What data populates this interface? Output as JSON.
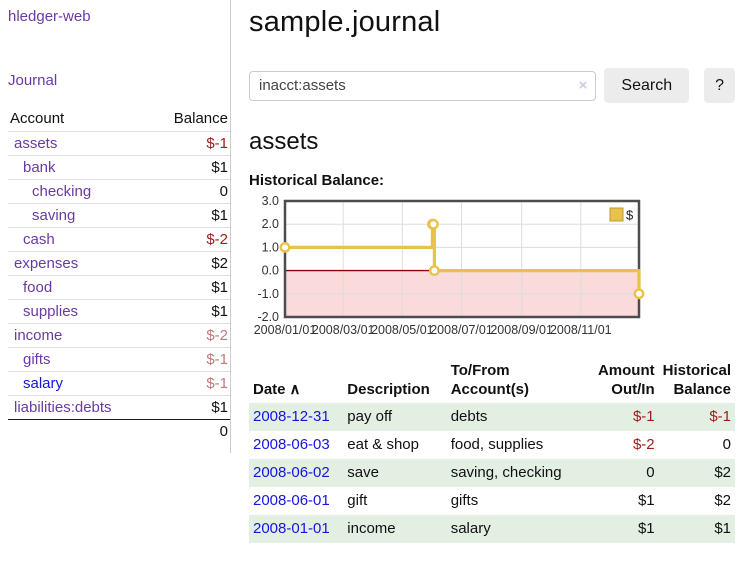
{
  "app": {
    "brand": "hledger-web",
    "nav_journal": "Journal"
  },
  "sidebar": {
    "columns": {
      "account": "Account",
      "balance": "Balance"
    },
    "accounts": [
      {
        "name": "assets",
        "depth": 1,
        "bold": true,
        "balance": "$-1",
        "neg": "strong"
      },
      {
        "name": "bank",
        "depth": 2,
        "bold": true,
        "balance": "$1"
      },
      {
        "name": "checking",
        "depth": 3,
        "bold": true,
        "balance": "0"
      },
      {
        "name": "saving",
        "depth": 3,
        "bold": true,
        "balance": "$1"
      },
      {
        "name": "cash",
        "depth": 2,
        "bold": true,
        "balance": "$-2",
        "neg": "strong"
      },
      {
        "name": "expenses",
        "depth": 1,
        "bold": false,
        "balance": "$2"
      },
      {
        "name": "food",
        "depth": 2,
        "bold": false,
        "balance": "$1"
      },
      {
        "name": "supplies",
        "depth": 2,
        "bold": false,
        "balance": "$1"
      },
      {
        "name": "income",
        "depth": 1,
        "bold": false,
        "balance": "$-2",
        "neg": "soft"
      },
      {
        "name": "gifts",
        "depth": 2,
        "bold": false,
        "balance": "$-1",
        "neg": "soft"
      },
      {
        "name": "salary",
        "depth": 2,
        "bold": false,
        "balance": "$-1",
        "neg": "soft",
        "link": "blue"
      },
      {
        "name": "liabilities:debts",
        "depth": 1,
        "bold": false,
        "balance": "$1"
      }
    ],
    "total": "0"
  },
  "header": {
    "title": "sample.journal"
  },
  "search": {
    "value": "inacct:assets",
    "clear_icon": "×",
    "button": "Search",
    "help": "?"
  },
  "account_page": {
    "heading": "assets",
    "chart_label": "Historical Balance:"
  },
  "chart_data": {
    "type": "line",
    "title": "Historical Balance:",
    "step": true,
    "x_range": [
      "2008-01-01",
      "2008-12-31"
    ],
    "x_ticks": [
      {
        "date": "2008-01-01",
        "label": "2008/01/01"
      },
      {
        "date": "2008-03-01",
        "label": "2008/03/01"
      },
      {
        "date": "2008-05-01",
        "label": "2008/05/01"
      },
      {
        "date": "2008-07-01",
        "label": "2008/07/01"
      },
      {
        "date": "2008-09-01",
        "label": "2008/09/01"
      },
      {
        "date": "2008-11-01",
        "label": "2008/11/01"
      }
    ],
    "y_ticks": [
      "3.0",
      "2.0",
      "1.0",
      "0.0",
      "-1.0",
      "-2.0"
    ],
    "ylim": [
      -2,
      3
    ],
    "grid": true,
    "legend": {
      "label": "$",
      "position": "top-right"
    },
    "colors": {
      "line": "#e9c24a",
      "marker_fill": "#ffffff",
      "legend_fill": "#e9c24a",
      "legend_border": "#bf9a2e",
      "negative_fill": "#fadada",
      "zero_line": "#8b0000",
      "grid": "#dddddd",
      "border": "#4d4d4d"
    },
    "series": [
      {
        "name": "$",
        "points": [
          {
            "date": "2008-01-01",
            "value": 1
          },
          {
            "date": "2008-06-01",
            "value": 2
          },
          {
            "date": "2008-06-02",
            "value": 2
          },
          {
            "date": "2008-06-03",
            "value": 0
          },
          {
            "date": "2008-12-31",
            "value": -1
          }
        ]
      }
    ]
  },
  "register": {
    "sort_icon": "∧",
    "headers": [
      "Date",
      "Description",
      "To/From Account(s)",
      "Amount Out/In",
      "Historical Balance"
    ],
    "rows": [
      {
        "date": "2008-12-31",
        "description": "pay off",
        "accounts": "debts",
        "amount": "$-1",
        "balance": "$-1",
        "shaded": true
      },
      {
        "date": "2008-06-03",
        "description": "eat & shop",
        "accounts": "food, supplies",
        "amount": "$-2",
        "balance": "0",
        "shaded": false
      },
      {
        "date": "2008-06-02",
        "description": "save",
        "accounts": "saving, checking",
        "amount": "0",
        "balance": "$2",
        "shaded": true
      },
      {
        "date": "2008-06-01",
        "description": "gift",
        "accounts": "gifts",
        "amount": "$1",
        "balance": "$2",
        "shaded": false
      },
      {
        "date": "2008-01-01",
        "description": "income",
        "accounts": "salary",
        "amount": "$1",
        "balance": "$1",
        "shaded": true
      }
    ]
  }
}
